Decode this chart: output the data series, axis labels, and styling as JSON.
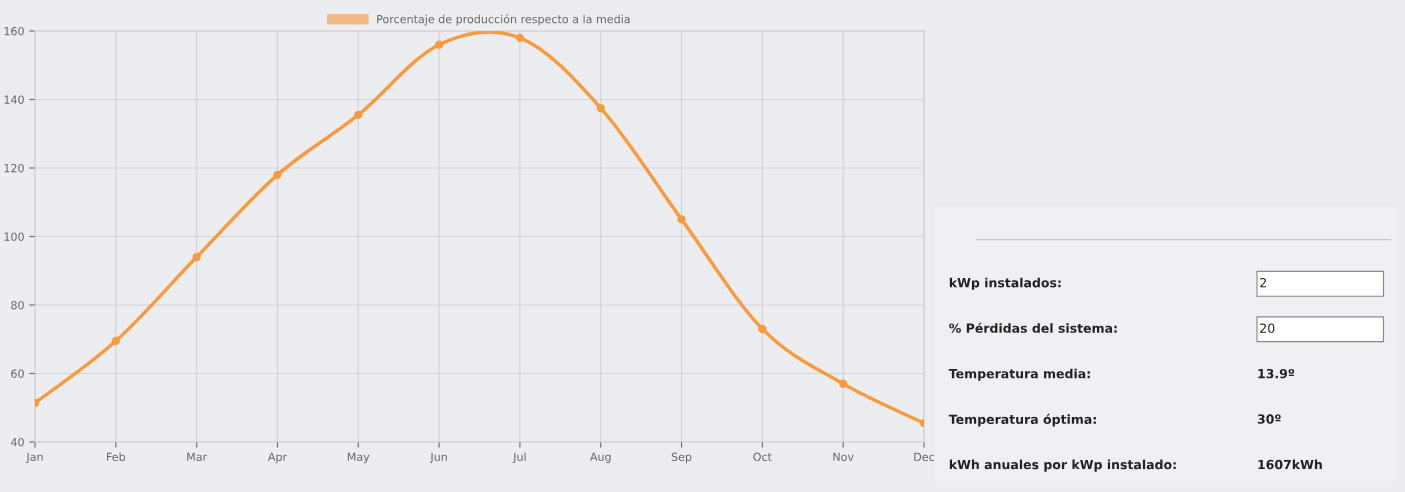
{
  "chart_data": [
    {
      "type": "line",
      "categories": [
        "Jan",
        "Feb",
        "Mar",
        "Apr",
        "May",
        "Jun",
        "Jul",
        "Aug",
        "Sep",
        "Oct",
        "Nov",
        "Dec"
      ],
      "series": [
        {
          "name": "Porcentaje de producción respecto a la media",
          "color": "#f89b3f",
          "values": [
            51.4,
            69.5,
            94,
            118,
            135.5,
            156,
            158,
            137.5,
            105,
            73,
            57,
            45.5
          ]
        }
      ],
      "ylim": [
        40,
        160
      ],
      "yticks": [
        40,
        60,
        80,
        100,
        120,
        140,
        160
      ],
      "grid": true,
      "legend": "top",
      "marker": "circle",
      "line_style": "solid"
    },
    {
      "type": "other",
      "annotations": [
        "kWp instalados:",
        "2",
        "% Pérdidas del sistema:",
        "20",
        "Temperatura media:",
        "13.9º",
        "Temperatura óptima:",
        "30º",
        "kWh anuales por kWp instalado:",
        "1607kWh"
      ]
    }
  ]
}
